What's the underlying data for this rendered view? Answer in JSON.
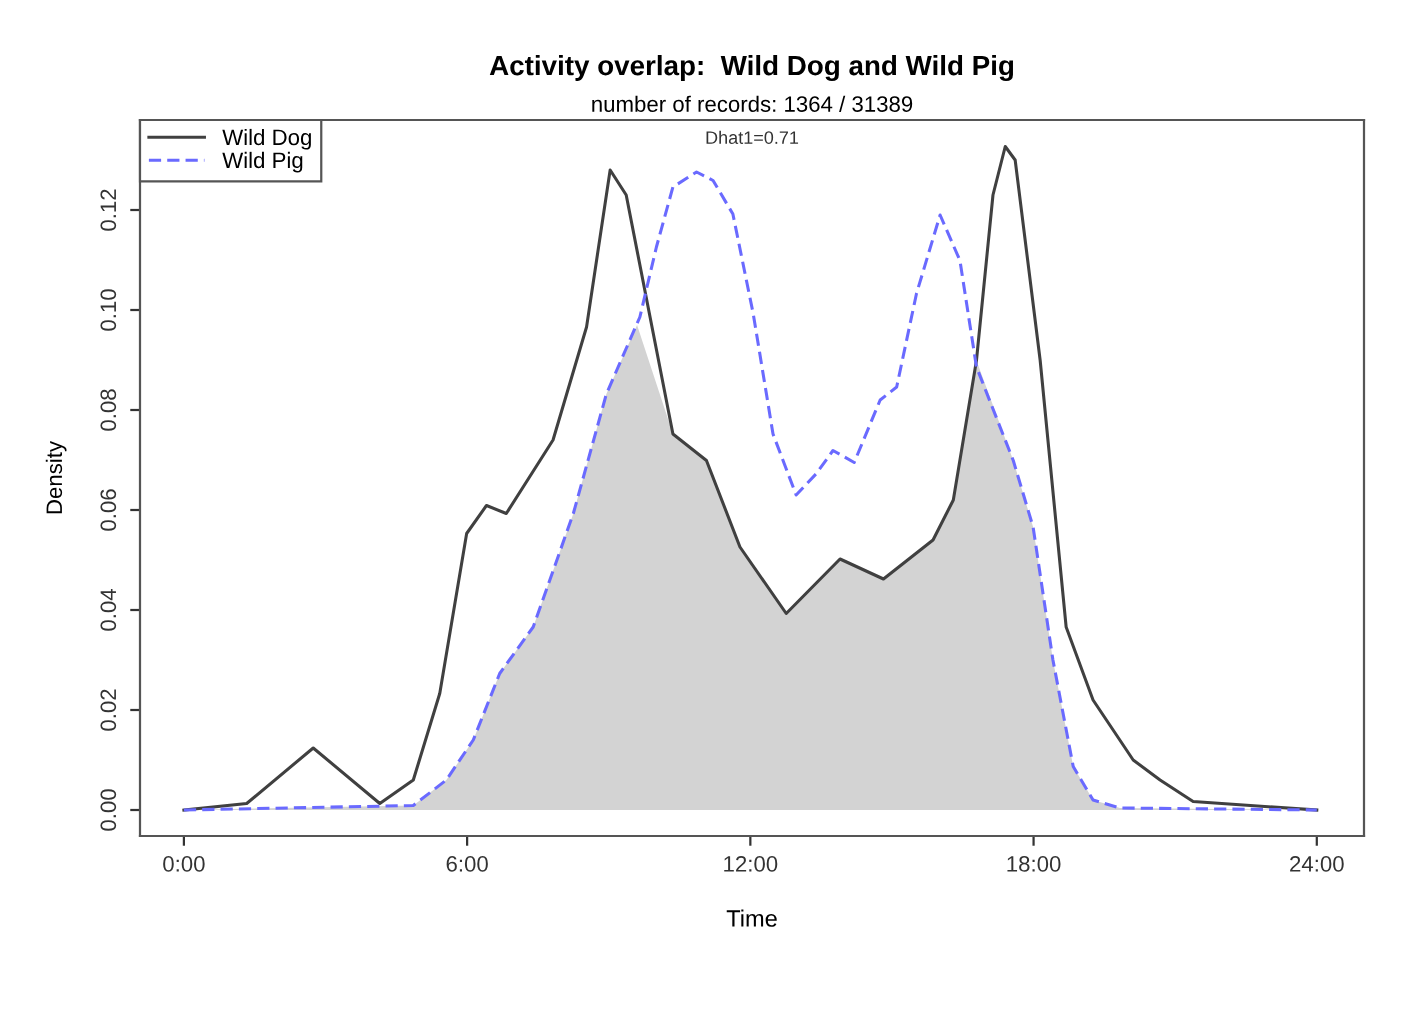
{
  "chart_data": {
    "type": "line",
    "title": "Activity overlap:  Wild Dog and Wild Pig",
    "subtitle": "number of records: 1364 / 31389",
    "xlabel": "Time",
    "ylabel": "Density",
    "annotations": [
      "Dhat1=0.71"
    ],
    "xlim": [
      -0.93,
      25.0
    ],
    "ylim": [
      -0.0052,
      0.138
    ],
    "xticks": [
      {
        "value": 0,
        "label": "0:00"
      },
      {
        "value": 6,
        "label": "6:00"
      },
      {
        "value": 12,
        "label": "12:00"
      },
      {
        "value": 18,
        "label": "18:00"
      },
      {
        "value": 24,
        "label": "24:00"
      }
    ],
    "yticks": [
      {
        "value": 0,
        "label": "0.00"
      },
      {
        "value": 0.02,
        "label": "0.02"
      },
      {
        "value": 0.04,
        "label": "0.04"
      },
      {
        "value": 0.06,
        "label": "0.06"
      },
      {
        "value": 0.08,
        "label": "0.08"
      },
      {
        "value": 0.1,
        "label": "0.10"
      },
      {
        "value": 0.12,
        "label": "0.12"
      }
    ],
    "grid": false,
    "legend": "top left",
    "series": [
      {
        "type": "area",
        "color": "#d3d3d3",
        "x": [
          0,
          4.86,
          5.56,
          6.13,
          6.69,
          7.4,
          8.25,
          8.95,
          9.6,
          10.36,
          11.07,
          11.78,
          12.76,
          13.9,
          14.82,
          15.87,
          16.3,
          16.79,
          17.57,
          17.99,
          18.41,
          18.84,
          19.26,
          19.83,
          24
        ],
        "values": [
          0,
          0.0009,
          0.006,
          0.014,
          0.0273,
          0.0366,
          0.0593,
          0.0832,
          0.097,
          0.0752,
          0.0699,
          0.0526,
          0.0393,
          0.0502,
          0.0462,
          0.054,
          0.062,
          0.0899,
          0.0699,
          0.0566,
          0.03,
          0.0087,
          0.002,
          0.0004,
          0
        ]
      },
      {
        "name": "Wild Dog",
        "line_style": "solid",
        "color": "#404040",
        "x": [
          0,
          1.33,
          2.74,
          4.15,
          4.86,
          5.42,
          5.99,
          6.41,
          6.83,
          7.82,
          8.53,
          9.03,
          9.37,
          10.36,
          11.07,
          11.78,
          12.76,
          13.9,
          14.82,
          15.87,
          16.3,
          16.79,
          17.14,
          17.4,
          17.61,
          18.14,
          18.69,
          19.26,
          20.11,
          20.68,
          21.38,
          24
        ],
        "values": [
          0,
          0.0013,
          0.0124,
          0.0013,
          0.006,
          0.0233,
          0.0553,
          0.0609,
          0.0593,
          0.074,
          0.0966,
          0.128,
          0.123,
          0.0752,
          0.0699,
          0.0526,
          0.0393,
          0.0502,
          0.0462,
          0.054,
          0.062,
          0.0899,
          0.123,
          0.1327,
          0.13,
          0.0899,
          0.0366,
          0.022,
          0.01,
          0.006,
          0.0017,
          0
        ]
      },
      {
        "name": "Wild Pig",
        "line_style": "dashed",
        "color": "#6a6aff",
        "x": [
          0,
          4.86,
          5.56,
          6.13,
          6.69,
          7.4,
          8.25,
          8.95,
          9.66,
          10.01,
          10.36,
          10.86,
          11.21,
          11.63,
          12.06,
          12.48,
          12.97,
          13.4,
          13.75,
          14.2,
          14.75,
          15.1,
          15.52,
          16.02,
          16.44,
          16.79,
          17.57,
          17.99,
          18.41,
          18.84,
          19.26,
          19.83,
          24
        ],
        "values": [
          0,
          0.0009,
          0.006,
          0.014,
          0.0273,
          0.0366,
          0.0593,
          0.0832,
          0.0986,
          0.1126,
          0.1246,
          0.1276,
          0.1259,
          0.1192,
          0.0993,
          0.0752,
          0.063,
          0.0673,
          0.0719,
          0.0695,
          0.082,
          0.0846,
          0.1033,
          0.119,
          0.1099,
          0.0886,
          0.0699,
          0.0566,
          0.03,
          0.0087,
          0.002,
          0.0004,
          0
        ]
      }
    ]
  }
}
